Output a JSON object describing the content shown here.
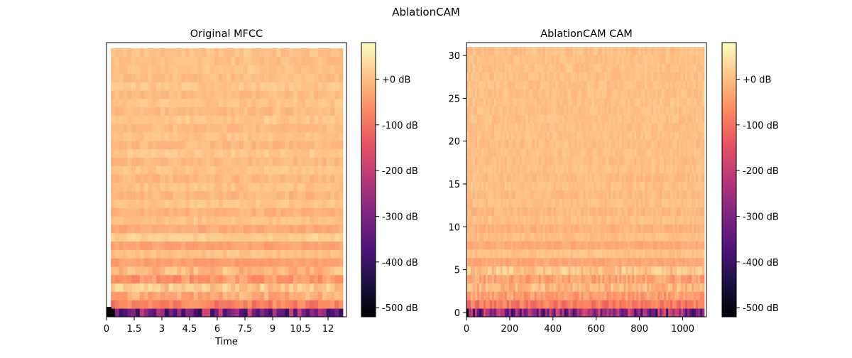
{
  "figure": {
    "suptitle": "AblationCAM"
  },
  "chart_data": [
    {
      "type": "heatmap",
      "title": "Original MFCC",
      "xlabel": "Time",
      "ylabel": "",
      "xlim": [
        0,
        13.0
      ],
      "x_ticks": [
        0,
        1.5,
        3,
        4.5,
        6,
        7.5,
        9,
        10.5,
        12
      ],
      "x_tick_labels": [
        "0",
        "1.5",
        "3",
        "4.5",
        "6",
        "7.5",
        "9",
        "10.5",
        "12"
      ],
      "y_ticks": [],
      "n_rows": 32,
      "n_cols": 56,
      "colormap": "magma",
      "colorbar": {
        "range_db": [
          -520,
          80
        ],
        "ticks": [
          0,
          -100,
          -200,
          -300,
          -400,
          -500
        ],
        "tick_labels": [
          "+0 dB",
          "-100 dB",
          "-200 dB",
          "-300 dB",
          "-400 dB",
          "-500 dB"
        ]
      },
      "row_profile_db": [
        -300,
        -80,
        -20,
        10,
        -50,
        -5,
        -40,
        5,
        -35,
        20,
        -25,
        5,
        -15,
        10,
        -10,
        5,
        -8,
        10,
        -5,
        12,
        -6,
        8,
        -4,
        10,
        -3,
        8,
        -2,
        10,
        0,
        8,
        2,
        6
      ]
    },
    {
      "type": "heatmap",
      "title": "AblationCAM CAM",
      "xlabel": "",
      "ylabel": "",
      "xlim": [
        0,
        1110
      ],
      "ylim": [
        -0.5,
        31.5
      ],
      "x_ticks": [
        0,
        200,
        400,
        600,
        800,
        1000
      ],
      "x_tick_labels": [
        "0",
        "200",
        "400",
        "600",
        "800",
        "1000"
      ],
      "y_ticks": [
        0,
        5,
        10,
        15,
        20,
        25,
        30
      ],
      "y_tick_labels": [
        "0",
        "5",
        "10",
        "15",
        "20",
        "25",
        "30"
      ],
      "n_rows": 32,
      "n_cols": 112,
      "colormap": "magma",
      "colorbar": {
        "range_db": [
          -520,
          80
        ],
        "ticks": [
          0,
          -100,
          -200,
          -300,
          -400,
          -500
        ],
        "tick_labels": [
          "+0 dB",
          "-100 dB",
          "-200 dB",
          "-300 dB",
          "-400 dB",
          "-500 dB"
        ]
      },
      "row_profile_db": [
        -280,
        -90,
        -45,
        -10,
        -35,
        10,
        -30,
        5,
        -25,
        0,
        -15,
        2,
        -8,
        4,
        -4,
        3,
        -2,
        4,
        0,
        3,
        1,
        4,
        2,
        3,
        2,
        4,
        3,
        3,
        3,
        4,
        3,
        3
      ]
    }
  ]
}
